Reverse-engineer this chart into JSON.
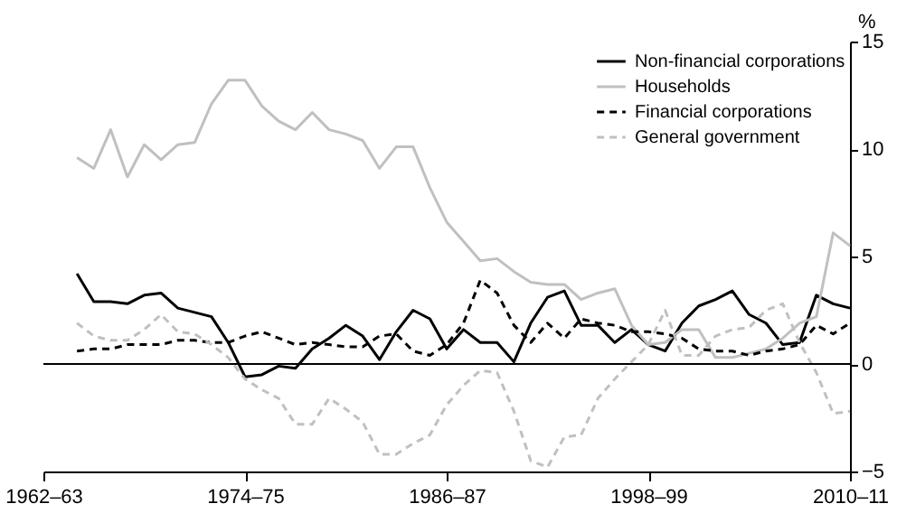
{
  "chart_data": {
    "type": "line",
    "categories": [
      "1962–63",
      null,
      null,
      null,
      null,
      null,
      null,
      null,
      null,
      null,
      null,
      null,
      "1974–75",
      null,
      null,
      null,
      null,
      null,
      null,
      null,
      null,
      null,
      null,
      null,
      "1986–87",
      null,
      null,
      null,
      null,
      null,
      null,
      null,
      null,
      null,
      null,
      null,
      "1998–99",
      null,
      null,
      null,
      null,
      null,
      null,
      null,
      null,
      null,
      null,
      null,
      "2010–11"
    ],
    "series": [
      {
        "name": "Non-financial corporations",
        "color": "#000000",
        "line_style": "solid",
        "values": [
          null,
          null,
          4.2,
          2.9,
          2.9,
          2.8,
          3.2,
          3.3,
          2.6,
          2.4,
          2.2,
          1.0,
          -0.6,
          -0.5,
          -0.1,
          -0.2,
          0.7,
          1.2,
          1.8,
          1.3,
          0.2,
          1.5,
          2.5,
          2.1,
          0.7,
          1.6,
          1.0,
          1.0,
          0.1,
          1.9,
          3.1,
          3.4,
          1.8,
          1.8,
          1.0,
          1.6,
          0.9,
          0.6,
          1.9,
          2.7,
          3.0,
          3.4,
          2.3,
          1.9,
          0.9,
          1.0,
          3.2,
          2.8,
          2.6
        ]
      },
      {
        "name": "Households",
        "color": "#c0c0c0",
        "line_style": "solid",
        "values": [
          null,
          null,
          9.6,
          9.1,
          10.9,
          8.7,
          10.2,
          9.5,
          10.2,
          10.3,
          12.1,
          13.2,
          13.2,
          12.0,
          11.3,
          10.9,
          11.7,
          10.9,
          10.7,
          10.4,
          9.1,
          10.1,
          10.1,
          8.2,
          6.6,
          5.7,
          4.8,
          4.9,
          4.3,
          3.8,
          3.7,
          3.7,
          3.0,
          3.3,
          3.5,
          1.8,
          0.9,
          1.0,
          1.6,
          1.6,
          0.3,
          0.3,
          0.5,
          0.7,
          1.2,
          1.9,
          2.2,
          6.1,
          5.5
        ]
      },
      {
        "name": "Financial corporations",
        "color": "#000000",
        "line_style": "dashed",
        "values": [
          null,
          null,
          0.6,
          0.7,
          0.7,
          0.9,
          0.9,
          0.9,
          1.1,
          1.1,
          1.0,
          1.0,
          1.3,
          1.5,
          1.2,
          0.9,
          1.0,
          0.9,
          0.8,
          0.8,
          1.3,
          1.4,
          0.6,
          0.4,
          0.9,
          1.9,
          3.9,
          3.3,
          1.8,
          1.0,
          1.9,
          1.2,
          2.1,
          1.9,
          1.8,
          1.5,
          1.5,
          1.4,
          1.2,
          0.7,
          0.6,
          0.6,
          0.4,
          0.6,
          0.7,
          0.9,
          1.8,
          1.4,
          1.9
        ]
      },
      {
        "name": "General government",
        "color": "#c0c0c0",
        "line_style": "dashed",
        "values": [
          null,
          null,
          1.9,
          1.3,
          1.1,
          1.1,
          1.6,
          2.3,
          1.5,
          1.4,
          0.9,
          0.3,
          -0.7,
          -1.2,
          -1.6,
          -2.8,
          -2.8,
          -1.6,
          -2.1,
          -2.7,
          -4.2,
          -4.2,
          -3.7,
          -3.3,
          -1.9,
          -1.0,
          -0.3,
          -0.4,
          -2.2,
          -4.5,
          -4.8,
          -3.4,
          -3.3,
          -1.6,
          -0.7,
          0.1,
          0.9,
          2.5,
          0.4,
          0.4,
          1.3,
          1.6,
          1.7,
          2.5,
          2.8,
          1.0,
          -0.4,
          -2.3,
          -2.2
        ]
      }
    ],
    "ylabel": "%",
    "ylim": [
      -5,
      15
    ],
    "yticks": [
      -5,
      0,
      5,
      10,
      15
    ],
    "ref_lines": [
      {
        "axis": "y",
        "value": 0,
        "color": "#000000"
      }
    ],
    "legend": "top right"
  }
}
